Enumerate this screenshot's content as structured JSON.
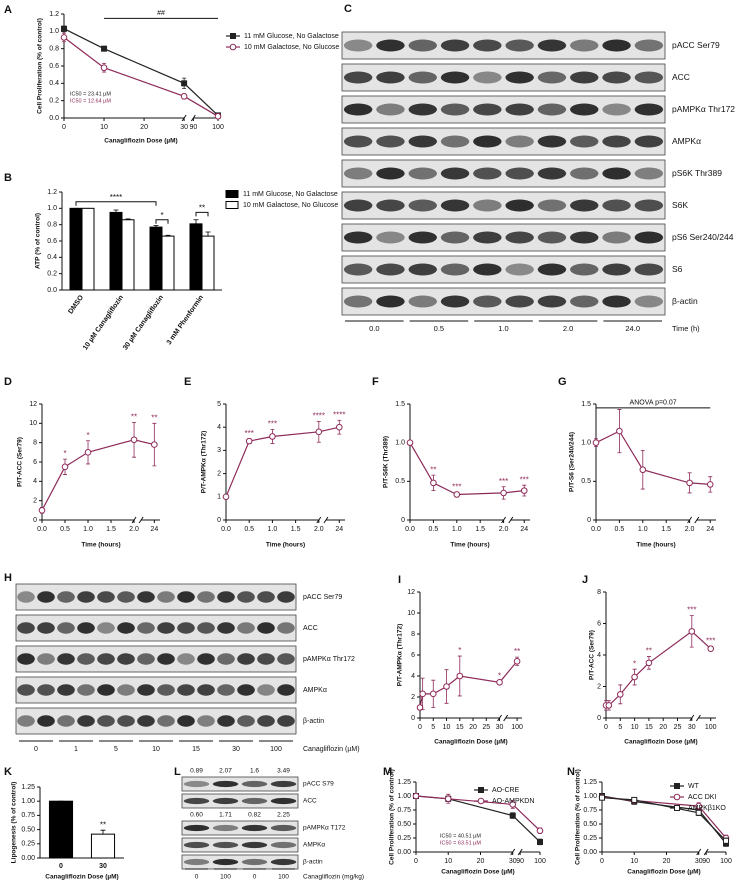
{
  "chart_data": [
    {
      "label": "A",
      "type": "line",
      "xlabel": "Canagliflozin Dose (µM)",
      "ylabel": "Cell Proliferation (% of control)",
      "x": [
        0,
        10,
        30,
        100
      ],
      "xlim": [
        0,
        100
      ],
      "xticks": [
        0,
        10,
        20,
        30,
        90,
        100
      ],
      "ylim": [
        0,
        1.2
      ],
      "yticks": [
        {
          "value": 0,
          "label": "0.0"
        },
        0.2,
        0.4,
        0.6,
        0.8,
        {
          "value": 1,
          "label": "1.0"
        },
        1.2
      ],
      "series": [
        {
          "name": "11 mM Glucose, No Galactose",
          "color": "#222222",
          "marker": "square",
          "filled": true,
          "values": [
            1.03,
            0.8,
            0.4,
            0.03
          ],
          "errors": [
            0.03,
            0.02,
            0.06,
            0.01
          ]
        },
        {
          "name": "10 mM Galactose, No Glucose",
          "color": "#8e2a5a",
          "marker": "circle",
          "filled": false,
          "values": [
            0.93,
            0.58,
            0.25,
            0.02
          ],
          "errors": [
            0.05,
            0.05,
            0.03,
            0.01
          ]
        }
      ],
      "ic50_labels": [
        "IC50 = 23.41 µM",
        "IC50 = 12.64 µM"
      ],
      "annotation": "##"
    },
    {
      "label": "B",
      "type": "bar",
      "ylabel": "ATP (% of control)",
      "categories": [
        "DMSO",
        "10 µM Canagliflozin",
        "30 µM Canagliflozin",
        "3 mM Phenformin"
      ],
      "ylim": [
        0,
        1.2
      ],
      "yticks": [
        {
          "value": 0,
          "label": "0.0"
        },
        0.2,
        0.4,
        0.6,
        0.8,
        {
          "value": 1,
          "label": "1.0"
        },
        1.2
      ],
      "series": [
        {
          "name": "11 mM Glucose, No Galactose",
          "color": "#000000",
          "values": [
            1.0,
            0.95,
            0.77,
            0.81
          ],
          "errors": [
            0,
            0.03,
            0.02,
            0.05
          ]
        },
        {
          "name": "10 mM Galactose, No Glucose",
          "color": "#ffffff",
          "values": [
            1.0,
            0.86,
            0.66,
            0.66
          ],
          "errors": [
            0,
            0.01,
            0.01,
            0.05
          ]
        }
      ],
      "annotations": [
        "****",
        "*",
        "**"
      ]
    },
    {
      "label": "D",
      "type": "line",
      "xlabel": "Time (hours)",
      "ylabel": "P/T-ACC (Ser79)",
      "x": [
        0,
        0.5,
        1,
        2,
        24
      ],
      "xlim": [
        0,
        24
      ],
      "xticks": [
        {
          "value": 0,
          "label": "0.0"
        },
        0.5,
        {
          "value": 1,
          "label": "1.0"
        },
        1.5,
        {
          "value": 2,
          "label": "2.0"
        },
        24
      ],
      "ylim": [
        0,
        12
      ],
      "yticks": [
        0,
        2,
        4,
        6,
        8,
        10,
        12
      ],
      "series": [
        {
          "color": "#8e2a5a",
          "marker": "circle",
          "filled": false,
          "values": [
            1,
            5.5,
            7,
            8.3,
            7.8
          ],
          "errors": [
            0.3,
            0.8,
            1.2,
            1.8,
            2.2
          ],
          "significance": [
            null,
            "*",
            "*",
            "**",
            "**"
          ]
        }
      ]
    },
    {
      "label": "E",
      "type": "line",
      "xlabel": "Time (hours)",
      "ylabel": "P/T-AMPKα (Thr172)",
      "x": [
        0,
        0.5,
        1,
        2,
        24
      ],
      "xlim": [
        0,
        24
      ],
      "xticks": [
        {
          "value": 0,
          "label": "0.0"
        },
        0.5,
        {
          "value": 1,
          "label": "1.0"
        },
        1.5,
        {
          "value": 2,
          "label": "2.0"
        },
        24
      ],
      "ylim": [
        0,
        5
      ],
      "yticks": [
        0,
        1,
        2,
        3,
        4,
        5
      ],
      "series": [
        {
          "color": "#8e2a5a",
          "marker": "circle",
          "filled": false,
          "values": [
            1,
            3.4,
            3.6,
            3.8,
            4.0
          ],
          "errors": [
            0.1,
            0.1,
            0.3,
            0.45,
            0.3
          ],
          "significance": [
            null,
            "***",
            "***",
            "****",
            "****"
          ]
        }
      ]
    },
    {
      "label": "F",
      "type": "line",
      "xlabel": "Time (hours)",
      "ylabel": "P/T-S6K (Thr389)",
      "x": [
        0,
        0.5,
        1,
        2,
        24
      ],
      "xlim": [
        0,
        24
      ],
      "xticks": [
        {
          "value": 0,
          "label": "0.0"
        },
        0.5,
        {
          "value": 1,
          "label": "1.0"
        },
        1.5,
        {
          "value": 2,
          "label": "2.0"
        },
        24
      ],
      "ylim": [
        0,
        1.5
      ],
      "yticks": [
        0,
        0.5,
        {
          "value": 1,
          "label": "1.0"
        },
        1.5
      ],
      "series": [
        {
          "color": "#8e2a5a",
          "marker": "circle",
          "filled": false,
          "values": [
            1,
            0.48,
            0.33,
            0.35,
            0.38
          ],
          "errors": [
            0.02,
            0.1,
            0.03,
            0.08,
            0.07
          ],
          "significance": [
            null,
            "**",
            "***",
            "***",
            "***"
          ]
        }
      ]
    },
    {
      "label": "G",
      "type": "line",
      "xlabel": "Time (hours)",
      "ylabel": "P/T-S6 (Ser240/244)",
      "x": [
        0,
        0.5,
        1,
        2,
        24
      ],
      "xlim": [
        0,
        24
      ],
      "xticks": [
        {
          "value": 0,
          "label": "0.0"
        },
        0.5,
        {
          "value": 1,
          "label": "1.0"
        },
        1.5,
        {
          "value": 2,
          "label": "2.0"
        },
        24
      ],
      "ylim": [
        0,
        1.5
      ],
      "yticks": [
        0,
        0.5,
        {
          "value": 1,
          "label": "1.0"
        },
        1.5
      ],
      "series": [
        {
          "color": "#8e2a5a",
          "marker": "circle",
          "filled": false,
          "values": [
            1,
            1.15,
            0.65,
            0.48,
            0.46
          ],
          "errors": [
            0.05,
            0.28,
            0.25,
            0.13,
            0.1
          ]
        }
      ],
      "annotation": "ANOVA p=0.07"
    },
    {
      "label": "I",
      "type": "line",
      "xlabel": "Canagliflozin Dose (µM)",
      "ylabel": "P/T-AMPKα (Thr172)",
      "x": [
        0,
        1,
        5,
        10,
        15,
        30,
        100
      ],
      "xlim": [
        0,
        100
      ],
      "xticks": [
        0,
        5,
        10,
        15,
        20,
        25,
        30,
        100
      ],
      "ylim": [
        0,
        12
      ],
      "yticks": [
        0,
        2,
        4,
        6,
        8,
        10,
        12
      ],
      "series": [
        {
          "color": "#8e2a5a",
          "marker": "circle",
          "filled": false,
          "values": [
            1,
            2.3,
            2.3,
            3,
            4,
            3.4,
            5.4
          ],
          "errors": [
            0.1,
            1.5,
            1.3,
            1.6,
            1.9,
            0.1,
            0.4
          ],
          "significance": [
            null,
            null,
            null,
            null,
            "*",
            "*",
            "**"
          ]
        }
      ]
    },
    {
      "label": "J",
      "type": "line",
      "xlabel": "Canagliflozin Dose (µM)",
      "ylabel": "P/T-ACC (Ser79)",
      "x": [
        0,
        1,
        5,
        10,
        15,
        30,
        100
      ],
      "xlim": [
        0,
        100
      ],
      "xticks": [
        0,
        5,
        10,
        15,
        20,
        25,
        30,
        100
      ],
      "ylim": [
        0,
        8
      ],
      "yticks": [
        0,
        2,
        4,
        6,
        8
      ],
      "series": [
        {
          "color": "#8e2a5a",
          "marker": "circle",
          "filled": false,
          "values": [
            0.8,
            0.8,
            1.5,
            2.6,
            3.5,
            5.5,
            4.4
          ],
          "errors": [
            0.3,
            0.3,
            0.6,
            0.5,
            0.4,
            1.0,
            0.15
          ],
          "significance": [
            null,
            null,
            null,
            "*",
            "**",
            "***",
            "***"
          ]
        }
      ]
    },
    {
      "label": "K",
      "type": "bar",
      "xlabel": "Canagliflozin Dose (µM)",
      "ylabel": "Lipogenesis (% of control)",
      "categories": [
        "0",
        "30"
      ],
      "ylim": [
        0,
        1.25
      ],
      "yticks": [
        {
          "value": 0,
          "label": "0.00"
        },
        0.25,
        {
          "value": 0.5,
          "label": "0.50"
        },
        0.75,
        {
          "value": 1,
          "label": "1.00"
        },
        1.25
      ],
      "series": [
        {
          "colors": [
            "#000000",
            "#ffffff"
          ],
          "values": [
            1.0,
            0.42
          ],
          "errors": [
            0,
            0.07
          ],
          "significance": [
            null,
            "**"
          ]
        }
      ]
    },
    {
      "label": "M",
      "type": "line",
      "xlabel": "Canagliflozin Dose (µM)",
      "ylabel": "Cell Proliferation (% of control)",
      "x": [
        0,
        10,
        30,
        100
      ],
      "xlim": [
        0,
        100
      ],
      "xticks": [
        0,
        10,
        20,
        30,
        90,
        100
      ],
      "ylim": [
        0,
        1.25
      ],
      "yticks": [
        {
          "value": 0,
          "label": "0.00"
        },
        0.25,
        {
          "value": 0.5,
          "label": "0.50"
        },
        0.75,
        {
          "value": 1,
          "label": "1.00"
        },
        1.25
      ],
      "series": [
        {
          "name": "AO-CRE",
          "color": "#222222",
          "marker": "square",
          "filled": true,
          "values": [
            1.0,
            0.95,
            0.65,
            0.18
          ],
          "errors": [
            0.02,
            0.05,
            0.05,
            0.05
          ]
        },
        {
          "name": "AO-AMPKDN",
          "color": "#8e2a5a",
          "marker": "circle",
          "filled": false,
          "values": [
            1.0,
            0.95,
            0.85,
            0.38
          ],
          "errors": [
            0.03,
            0.08,
            0.07,
            0.05
          ]
        }
      ],
      "ic50_labels": [
        "IC50 = 40.51 µM",
        "IC50 = 63.51 µM"
      ]
    },
    {
      "label": "N",
      "type": "line",
      "xlabel": "Canagliflozin Dose (µM)",
      "ylabel": "Cell Proliferation (% of control)",
      "x": [
        0,
        10,
        30,
        100
      ],
      "xlim": [
        0,
        100
      ],
      "xticks": [
        0,
        10,
        20,
        30,
        90,
        100
      ],
      "ylim": [
        0,
        1.25
      ],
      "yticks": [
        {
          "value": 0,
          "label": "0.00"
        },
        0.25,
        {
          "value": 0.5,
          "label": "0.50"
        },
        0.75,
        {
          "value": 1,
          "label": "1.00"
        },
        1.25
      ],
      "series": [
        {
          "name": "WT",
          "color": "#222222",
          "marker": "square",
          "filled": true,
          "values": [
            1.0,
            0.9,
            0.75,
            0.15
          ],
          "errors": [
            0.03,
            0.05,
            0.05,
            0.05
          ]
        },
        {
          "name": "ACC DKI",
          "color": "#8e2a5a",
          "marker": "circle",
          "filled": false,
          "values": [
            0.98,
            0.92,
            0.82,
            0.25
          ],
          "errors": [
            0.03,
            0.04,
            0.06,
            0.05
          ]
        },
        {
          "name": "AMPKβ1KO",
          "color": "#222222",
          "marker": "square",
          "filled": false,
          "values": [
            0.97,
            0.93,
            0.7,
            0.2
          ],
          "errors": [
            0.03,
            0.04,
            0.05,
            0.05
          ]
        }
      ]
    }
  ],
  "blots": [
    {
      "label": "C",
      "proteins": [
        "pACC Ser79",
        "ACC",
        "pAMPKα Thr172",
        "AMPKα",
        "pS6K Thr389",
        "S6K",
        "pS6 Ser240/244",
        "S6",
        "β-actin"
      ],
      "lanes": [
        "0.0",
        "0.5",
        "1.0",
        "2.0",
        "24.0"
      ],
      "lane_axis_label": "Time (h)"
    },
    {
      "label": "H",
      "proteins": [
        "pACC Ser79",
        "ACC",
        "pAMPKα Thr172",
        "AMPKα",
        "β-actin"
      ],
      "lanes": [
        "0",
        "1",
        "5",
        "10",
        "15",
        "30",
        "100"
      ],
      "lane_axis_label": "Canagliflozin (µM)"
    },
    {
      "label": "L",
      "proteins": [
        "pACC S79",
        "ACC",
        "pAMPKα T172",
        "AMPKα",
        "β-actin"
      ],
      "quantification": [
        [
          "0.89",
          "2.07",
          "1.6",
          "3.49"
        ],
        [
          "0.60",
          "1.71",
          "0.82",
          "2.25"
        ]
      ],
      "lanes": [
        "0",
        "100",
        "0",
        "100"
      ],
      "lane_axis_label": "Canagliflozin (mg/kg)"
    }
  ]
}
